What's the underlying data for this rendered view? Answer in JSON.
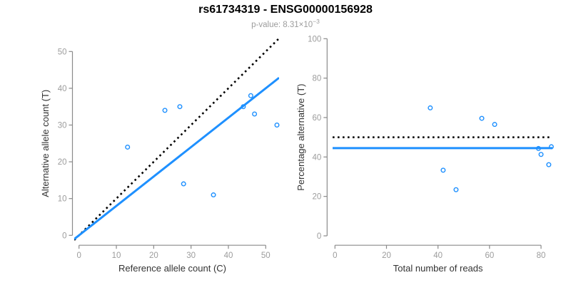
{
  "header": {
    "title": "rs61734319 - ENSG00000156928",
    "subtitle_label": "p-value: ",
    "subtitle_mantissa": "8.31×10",
    "subtitle_exponent": "−3"
  },
  "colors": {
    "accent_blue": "#1E90FF",
    "dotted_line": "#000000",
    "axis_line": "#8A8A8A",
    "tick_label": "#9C9C9C",
    "axis_title": "#333333",
    "title": "#000000",
    "subtitle": "#9C9C9C",
    "background": "#FFFFFF"
  },
  "chart_data": [
    {
      "id": "allele-counts",
      "type": "scatter",
      "title": "",
      "xlabel": "Reference allele count (C)",
      "ylabel": "Alternative allele count (T)",
      "xlim": [
        0,
        53
      ],
      "ylim": [
        0,
        53
      ],
      "xticks": [
        0,
        10,
        20,
        30,
        40,
        50
      ],
      "yticks": [
        0,
        10,
        20,
        30,
        40,
        50
      ],
      "grid": false,
      "legend": false,
      "marker": "open-circle",
      "points": [
        [
          13,
          24
        ],
        [
          23,
          34
        ],
        [
          27,
          35
        ],
        [
          28,
          14
        ],
        [
          36,
          11
        ],
        [
          44,
          35
        ],
        [
          46,
          38
        ],
        [
          47,
          33
        ],
        [
          53,
          30
        ]
      ],
      "lines": [
        {
          "name": "identity-line",
          "slope": 1,
          "intercept": 0,
          "style": "dotted",
          "color_key": "dotted_line"
        },
        {
          "name": "fit-line",
          "slope": 0.8,
          "intercept": 0,
          "style": "solid",
          "color_key": "accent_blue"
        }
      ]
    },
    {
      "id": "percentage-reads",
      "type": "scatter",
      "title": "",
      "xlabel": "Total number of reads",
      "ylabel": "Percentage alternative (T)",
      "xlim": [
        0,
        84
      ],
      "ylim": [
        0,
        100
      ],
      "xticks": [
        0,
        20,
        40,
        60,
        80
      ],
      "yticks": [
        0,
        20,
        40,
        60,
        80,
        100
      ],
      "grid": false,
      "legend": false,
      "marker": "open-circle",
      "points": [
        [
          37,
          64.9
        ],
        [
          42,
          33.3
        ],
        [
          47,
          23.4
        ],
        [
          57,
          59.6
        ],
        [
          62,
          56.5
        ],
        [
          79,
          44.3
        ],
        [
          80,
          41.3
        ],
        [
          83,
          36.1
        ],
        [
          84,
          45.2
        ]
      ],
      "lines": [
        {
          "name": "reference-line",
          "slope": 0,
          "intercept": 50,
          "style": "dotted",
          "color_key": "dotted_line"
        },
        {
          "name": "mean-line",
          "slope": 0,
          "intercept": 44.5,
          "style": "solid",
          "color_key": "accent_blue"
        }
      ]
    }
  ]
}
